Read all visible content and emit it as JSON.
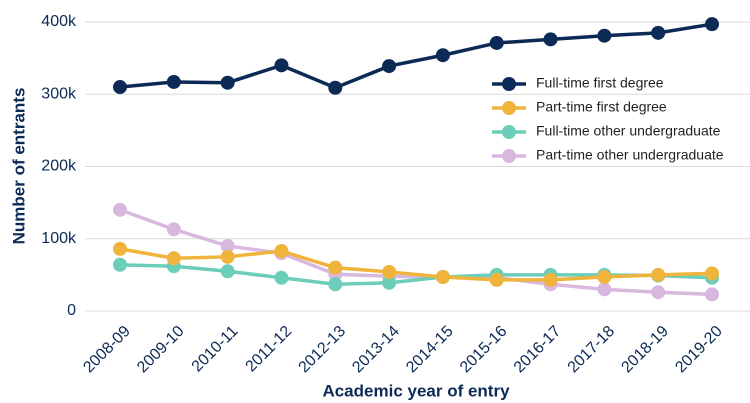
{
  "chart_data": {
    "type": "line",
    "y_label": "Number of entrants",
    "x_label": "Academic year of entry",
    "categories": [
      "2008-09",
      "2009-10",
      "2010-11",
      "2011-12",
      "2012-13",
      "2013-14",
      "2014-15",
      "2015-16",
      "2016-17",
      "2017-18",
      "2018-19",
      "2019-20"
    ],
    "series": [
      {
        "name": "Full-time first degree",
        "color": "#0b2a55",
        "values": [
          310000,
          317000,
          316000,
          340000,
          309000,
          339000,
          354000,
          371000,
          376000,
          381000,
          385000,
          397000
        ]
      },
      {
        "name": "Part-time first degree",
        "color": "#f0b43c",
        "values": [
          86000,
          73000,
          75000,
          83000,
          60000,
          54000,
          47000,
          43000,
          43000,
          47000,
          50000,
          52000
        ]
      },
      {
        "name": "Full-time other undergraduate",
        "color": "#6ccdb9",
        "values": [
          64000,
          62000,
          55000,
          46000,
          37000,
          39000,
          47000,
          50000,
          50000,
          50000,
          49000,
          46000
        ]
      },
      {
        "name": "Part-time other undergraduate",
        "color": "#d9b8e0",
        "values": [
          140000,
          113000,
          90000,
          80000,
          51000,
          48000,
          47000,
          46000,
          37000,
          30000,
          26000,
          23000
        ]
      }
    ],
    "ylim": [
      0,
      400000
    ],
    "yticks": [
      0,
      {
        "value": 100000,
        "label": "100k"
      },
      {
        "value": 200000,
        "label": "200k"
      },
      {
        "value": 300000,
        "label": "300k"
      },
      {
        "value": 400000,
        "label": "400k"
      }
    ],
    "grid": true,
    "legend": "upper right"
  }
}
